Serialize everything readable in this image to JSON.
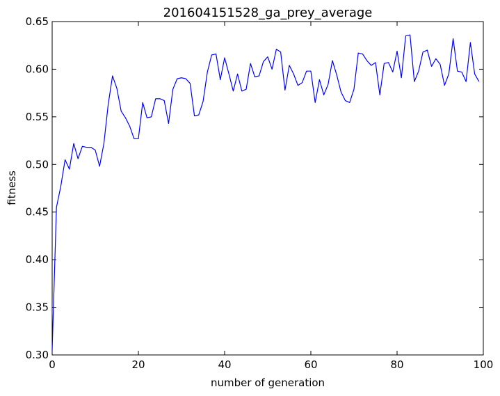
{
  "chart_data": {
    "type": "line",
    "title": "201604151528_ga_prey_average",
    "xlabel": "number of generation",
    "ylabel": "fitness",
    "xlim": [
      0,
      100
    ],
    "ylim": [
      0.3,
      0.65
    ],
    "x_ticks": [
      0,
      20,
      40,
      60,
      80,
      100
    ],
    "x_tick_labels": [
      "0",
      "20",
      "40",
      "60",
      "80",
      "100"
    ],
    "y_ticks": [
      0.3,
      0.35,
      0.4,
      0.45,
      0.5,
      0.55,
      0.6,
      0.65
    ],
    "y_tick_labels": [
      "0.30",
      "0.35",
      "0.40",
      "0.45",
      "0.50",
      "0.55",
      "0.60",
      "0.65"
    ],
    "grid": false,
    "series": [
      {
        "color": "#0000ff",
        "x": [
          0,
          1,
          2,
          3,
          4,
          5,
          6,
          7,
          8,
          9,
          10,
          11,
          12,
          13,
          14,
          15,
          16,
          17,
          18,
          19,
          20,
          21,
          22,
          23,
          24,
          25,
          26,
          27,
          28,
          29,
          30,
          31,
          32,
          33,
          34,
          35,
          36,
          37,
          38,
          39,
          40,
          41,
          42,
          43,
          44,
          45,
          46,
          47,
          48,
          49,
          50,
          51,
          52,
          53,
          54,
          55,
          56,
          57,
          58,
          59,
          60,
          61,
          62,
          63,
          64,
          65,
          66,
          67,
          68,
          69,
          70,
          71,
          72,
          73,
          74,
          75,
          76,
          77,
          78,
          79,
          80,
          81,
          82,
          83,
          84,
          85,
          86,
          87,
          88,
          89,
          90,
          91,
          92,
          93,
          94,
          95,
          96,
          97,
          98,
          99
        ],
        "y": [
          0.305,
          0.455,
          0.477,
          0.505,
          0.495,
          0.522,
          0.506,
          0.519,
          0.518,
          0.518,
          0.515,
          0.498,
          0.522,
          0.563,
          0.593,
          0.58,
          0.556,
          0.549,
          0.54,
          0.527,
          0.527,
          0.565,
          0.549,
          0.55,
          0.569,
          0.569,
          0.567,
          0.543,
          0.579,
          0.59,
          0.591,
          0.59,
          0.585,
          0.551,
          0.552,
          0.566,
          0.597,
          0.615,
          0.616,
          0.589,
          0.612,
          0.595,
          0.577,
          0.595,
          0.577,
          0.579,
          0.606,
          0.592,
          0.593,
          0.608,
          0.613,
          0.6,
          0.621,
          0.618,
          0.578,
          0.604,
          0.595,
          0.583,
          0.586,
          0.598,
          0.598,
          0.565,
          0.589,
          0.573,
          0.584,
          0.609,
          0.594,
          0.576,
          0.567,
          0.565,
          0.579,
          0.617,
          0.616,
          0.609,
          0.604,
          0.607,
          0.573,
          0.606,
          0.607,
          0.597,
          0.619,
          0.591,
          0.635,
          0.636,
          0.587,
          0.598,
          0.618,
          0.62,
          0.603,
          0.611,
          0.605,
          0.583,
          0.595,
          0.632,
          0.598,
          0.597,
          0.587,
          0.628,
          0.595,
          0.587
        ]
      }
    ]
  }
}
